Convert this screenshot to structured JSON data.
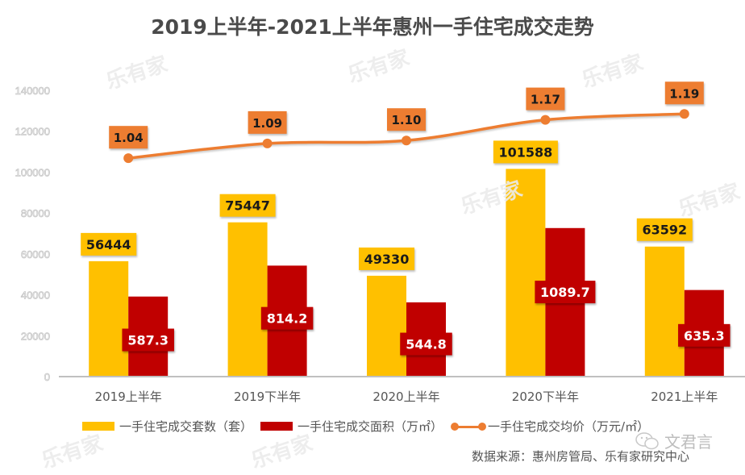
{
  "chart_data": {
    "type": "bar",
    "title": "2019上半年-2021上半年惠州一手住宅成交走势",
    "xlabel": "",
    "ylabel": "",
    "categories": [
      "2019上半年",
      "2019下半年",
      "2020上半年",
      "2020下半年",
      "2021上半年"
    ],
    "ylim": [
      0,
      140000
    ],
    "yticks": [
      "0",
      "20000",
      "40000",
      "60000",
      "80000",
      "100000",
      "120000",
      "140000"
    ],
    "grid": false,
    "legend_position": "bottom",
    "series": [
      {
        "name": "一手住宅成交套数（套）",
        "type": "bar",
        "axis": "primary",
        "color": "#FFC000",
        "values": [
          56444,
          75447,
          49330,
          101588,
          63592
        ],
        "labels": [
          "56444",
          "75447",
          "49330",
          "101588",
          "63592"
        ]
      },
      {
        "name": "一手住宅成交面积（万㎡）",
        "type": "bar",
        "axis": "secondary",
        "color": "#C00000",
        "values": [
          587.3,
          814.2,
          544.8,
          1089.7,
          635.3
        ],
        "labels": [
          "587.3",
          "814.2",
          "544.8",
          "1089.7",
          "635.3"
        ]
      },
      {
        "name": "一手住宅成交均价（万元/㎡）",
        "type": "line",
        "axis": "tertiary",
        "color": "#ED7D31",
        "values": [
          1.04,
          1.09,
          1.1,
          1.17,
          1.19
        ],
        "labels": [
          "1.04",
          "1.09",
          "1.10",
          "1.17",
          "1.19"
        ]
      }
    ],
    "secondary_ylim": [
      0,
      2100
    ],
    "tertiary_ylim": [
      0.3,
      1.27
    ]
  },
  "source": "数据来源：惠州房管局、乐有家研究中心",
  "watermarks": {
    "brand": "乐有家",
    "wechat_account": "文君言"
  }
}
